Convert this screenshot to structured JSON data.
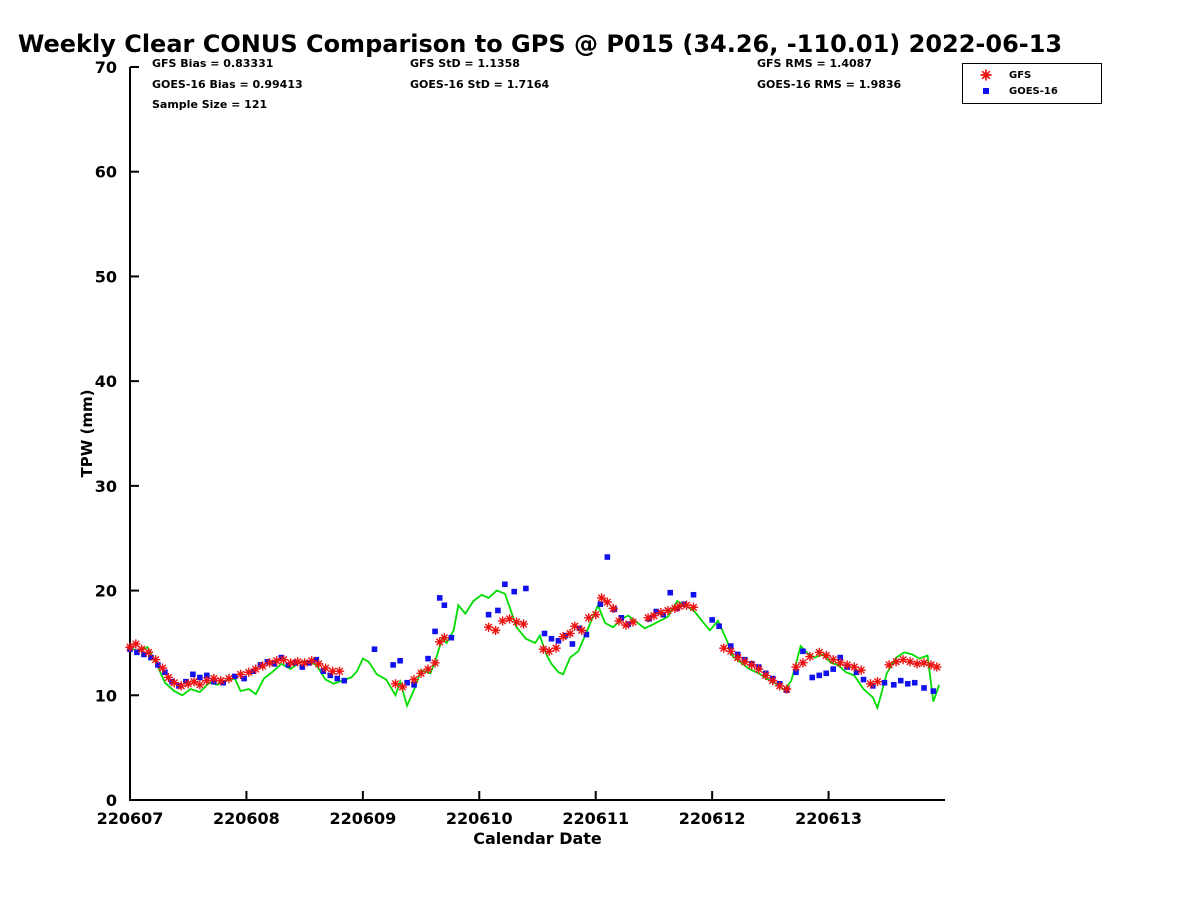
{
  "stats": {
    "gfs_bias": "GFS Bias = 0.83331",
    "goes_bias": "GOES-16 Bias = 0.99413",
    "sample_size": "Sample Size = 121",
    "gfs_std": "GFS StD = 1.1358",
    "goes_std": "GOES-16 StD = 1.7164",
    "gfs_rms": "GFS RMS = 1.4087",
    "goes_rms": "GOES-16 RMS = 1.9836"
  },
  "chart_data": {
    "type": "line",
    "title": "Weekly Clear CONUS Comparison to GPS @ P015 (34.26, -110.01) 2022-06-13",
    "xlabel": "Calendar Date",
    "ylabel": "TPW (mm)",
    "ylim": [
      0,
      70
    ],
    "yticks": [
      0,
      10,
      20,
      30,
      40,
      50,
      60,
      70
    ],
    "xtick_labels": [
      "220607",
      "220608",
      "220609",
      "220610",
      "220611",
      "220612",
      "220613"
    ],
    "xtick_positions_days": [
      0,
      1,
      2,
      3,
      4,
      5,
      6
    ],
    "xlim_days": [
      0,
      7
    ],
    "grid": false,
    "legend_position": "top-right-outside",
    "series": [
      {
        "name": "GPS",
        "marker": "line",
        "color": "#00dd00",
        "points": [
          [
            0.0,
            14.5
          ],
          [
            0.08,
            14.2
          ],
          [
            0.15,
            14.6
          ],
          [
            0.22,
            13.2
          ],
          [
            0.3,
            11.2
          ],
          [
            0.38,
            10.4
          ],
          [
            0.45,
            10.0
          ],
          [
            0.52,
            10.6
          ],
          [
            0.6,
            10.3
          ],
          [
            0.68,
            11.2
          ],
          [
            0.75,
            11.0
          ],
          [
            0.82,
            11.4
          ],
          [
            0.9,
            11.6
          ],
          [
            0.95,
            10.4
          ],
          [
            1.02,
            10.6
          ],
          [
            1.08,
            10.1
          ],
          [
            1.15,
            11.6
          ],
          [
            1.22,
            12.2
          ],
          [
            1.3,
            13.0
          ],
          [
            1.38,
            12.5
          ],
          [
            1.45,
            13.1
          ],
          [
            1.52,
            13.3
          ],
          [
            1.6,
            12.9
          ],
          [
            1.68,
            11.5
          ],
          [
            1.75,
            11.1
          ],
          [
            1.82,
            11.4
          ],
          [
            1.9,
            11.7
          ],
          [
            1.95,
            12.3
          ],
          [
            2.0,
            13.5
          ],
          [
            2.05,
            13.2
          ],
          [
            2.12,
            12.0
          ],
          [
            2.2,
            11.5
          ],
          [
            2.28,
            10.0
          ],
          [
            2.32,
            11.3
          ],
          [
            2.38,
            9.0
          ],
          [
            2.45,
            10.8
          ],
          [
            2.5,
            12.4
          ],
          [
            2.58,
            12.1
          ],
          [
            2.62,
            13.2
          ],
          [
            2.68,
            15.4
          ],
          [
            2.72,
            15.0
          ],
          [
            2.78,
            16.2
          ],
          [
            2.82,
            18.6
          ],
          [
            2.88,
            17.8
          ],
          [
            2.95,
            19.0
          ],
          [
            3.02,
            19.6
          ],
          [
            3.08,
            19.3
          ],
          [
            3.15,
            20.0
          ],
          [
            3.22,
            19.7
          ],
          [
            3.28,
            17.8
          ],
          [
            3.32,
            16.5
          ],
          [
            3.4,
            15.4
          ],
          [
            3.48,
            15.0
          ],
          [
            3.52,
            15.7
          ],
          [
            3.58,
            13.8
          ],
          [
            3.62,
            13.0
          ],
          [
            3.68,
            12.2
          ],
          [
            3.72,
            12.0
          ],
          [
            3.78,
            13.6
          ],
          [
            3.85,
            14.2
          ],
          [
            3.92,
            16.0
          ],
          [
            3.98,
            17.6
          ],
          [
            4.02,
            18.6
          ],
          [
            4.08,
            16.9
          ],
          [
            4.15,
            16.5
          ],
          [
            4.22,
            17.3
          ],
          [
            4.28,
            17.6
          ],
          [
            4.35,
            17.0
          ],
          [
            4.42,
            16.4
          ],
          [
            4.48,
            16.7
          ],
          [
            4.55,
            17.1
          ],
          [
            4.62,
            17.5
          ],
          [
            4.7,
            19.0
          ],
          [
            4.78,
            18.5
          ],
          [
            4.85,
            18.0
          ],
          [
            4.92,
            17.0
          ],
          [
            4.98,
            16.2
          ],
          [
            5.05,
            17.1
          ],
          [
            5.12,
            15.4
          ],
          [
            5.18,
            13.7
          ],
          [
            5.25,
            13.1
          ],
          [
            5.32,
            12.5
          ],
          [
            5.4,
            12.1
          ],
          [
            5.48,
            11.5
          ],
          [
            5.55,
            11.1
          ],
          [
            5.62,
            10.5
          ],
          [
            5.68,
            11.4
          ],
          [
            5.72,
            13.0
          ],
          [
            5.76,
            14.7
          ],
          [
            5.82,
            14.0
          ],
          [
            5.88,
            13.6
          ],
          [
            5.95,
            13.9
          ],
          [
            6.02,
            13.1
          ],
          [
            6.08,
            12.9
          ],
          [
            6.15,
            12.2
          ],
          [
            6.22,
            11.9
          ],
          [
            6.3,
            10.6
          ],
          [
            6.38,
            9.8
          ],
          [
            6.42,
            8.8
          ],
          [
            6.5,
            12.1
          ],
          [
            6.58,
            13.6
          ],
          [
            6.65,
            14.1
          ],
          [
            6.72,
            13.9
          ],
          [
            6.78,
            13.5
          ],
          [
            6.85,
            13.8
          ],
          [
            6.9,
            9.4
          ],
          [
            6.95,
            11.0
          ]
        ]
      },
      {
        "name": "GFS",
        "marker": "asterisk",
        "color": "#ee1111",
        "points": [
          [
            0.0,
            14.6
          ],
          [
            0.05,
            14.9
          ],
          [
            0.1,
            14.4
          ],
          [
            0.16,
            14.1
          ],
          [
            0.22,
            13.4
          ],
          [
            0.28,
            12.6
          ],
          [
            0.33,
            11.7
          ],
          [
            0.38,
            11.2
          ],
          [
            0.44,
            10.9
          ],
          [
            0.5,
            11.1
          ],
          [
            0.55,
            11.3
          ],
          [
            0.6,
            11.0
          ],
          [
            0.66,
            11.4
          ],
          [
            0.72,
            11.6
          ],
          [
            0.78,
            11.4
          ],
          [
            0.85,
            11.6
          ],
          [
            0.95,
            12.0
          ],
          [
            1.02,
            12.2
          ],
          [
            1.08,
            12.5
          ],
          [
            1.14,
            12.8
          ],
          [
            1.2,
            13.1
          ],
          [
            1.26,
            13.3
          ],
          [
            1.32,
            13.4
          ],
          [
            1.38,
            13.1
          ],
          [
            1.44,
            13.2
          ],
          [
            1.5,
            13.1
          ],
          [
            1.56,
            13.3
          ],
          [
            1.62,
            13.0
          ],
          [
            1.68,
            12.6
          ],
          [
            1.74,
            12.3
          ],
          [
            1.8,
            12.3
          ],
          [
            2.28,
            11.1
          ],
          [
            2.34,
            10.8
          ],
          [
            2.44,
            11.5
          ],
          [
            2.5,
            12.1
          ],
          [
            2.56,
            12.5
          ],
          [
            2.62,
            13.1
          ],
          [
            2.66,
            15.1
          ],
          [
            2.7,
            15.5
          ],
          [
            3.08,
            16.5
          ],
          [
            3.14,
            16.2
          ],
          [
            3.2,
            17.1
          ],
          [
            3.26,
            17.3
          ],
          [
            3.32,
            17.0
          ],
          [
            3.38,
            16.8
          ],
          [
            3.55,
            14.4
          ],
          [
            3.6,
            14.2
          ],
          [
            3.66,
            14.5
          ],
          [
            3.72,
            15.6
          ],
          [
            3.78,
            15.9
          ],
          [
            3.82,
            16.6
          ],
          [
            3.88,
            16.2
          ],
          [
            3.94,
            17.4
          ],
          [
            4.0,
            17.7
          ],
          [
            4.05,
            19.3
          ],
          [
            4.1,
            18.9
          ],
          [
            4.15,
            18.3
          ],
          [
            4.2,
            17.1
          ],
          [
            4.26,
            16.7
          ],
          [
            4.32,
            17.0
          ],
          [
            4.45,
            17.4
          ],
          [
            4.5,
            17.6
          ],
          [
            4.56,
            17.9
          ],
          [
            4.62,
            18.1
          ],
          [
            4.68,
            18.3
          ],
          [
            4.72,
            18.5
          ],
          [
            4.78,
            18.6
          ],
          [
            4.84,
            18.4
          ],
          [
            5.1,
            14.5
          ],
          [
            5.16,
            14.2
          ],
          [
            5.22,
            13.6
          ],
          [
            5.28,
            13.2
          ],
          [
            5.34,
            12.9
          ],
          [
            5.4,
            12.5
          ],
          [
            5.46,
            11.9
          ],
          [
            5.52,
            11.4
          ],
          [
            5.58,
            10.9
          ],
          [
            5.64,
            10.6
          ],
          [
            5.72,
            12.7
          ],
          [
            5.78,
            13.1
          ],
          [
            5.84,
            13.7
          ],
          [
            5.92,
            14.1
          ],
          [
            5.98,
            13.8
          ],
          [
            6.04,
            13.4
          ],
          [
            6.1,
            13.1
          ],
          [
            6.16,
            12.9
          ],
          [
            6.22,
            12.7
          ],
          [
            6.28,
            12.4
          ],
          [
            6.36,
            11.1
          ],
          [
            6.42,
            11.3
          ],
          [
            6.52,
            12.9
          ],
          [
            6.58,
            13.2
          ],
          [
            6.64,
            13.4
          ],
          [
            6.7,
            13.2
          ],
          [
            6.76,
            13.0
          ],
          [
            6.82,
            13.1
          ],
          [
            6.88,
            12.9
          ],
          [
            6.93,
            12.7
          ]
        ]
      },
      {
        "name": "GOES-16",
        "marker": "square",
        "color": "#1111ee",
        "points": [
          [
            0.0,
            14.4
          ],
          [
            0.06,
            14.1
          ],
          [
            0.12,
            13.9
          ],
          [
            0.18,
            13.6
          ],
          [
            0.24,
            12.9
          ],
          [
            0.3,
            12.2
          ],
          [
            0.36,
            11.3
          ],
          [
            0.42,
            10.9
          ],
          [
            0.48,
            11.3
          ],
          [
            0.54,
            12.0
          ],
          [
            0.6,
            11.7
          ],
          [
            0.66,
            11.9
          ],
          [
            0.72,
            11.3
          ],
          [
            0.8,
            11.2
          ],
          [
            0.9,
            11.8
          ],
          [
            0.98,
            11.6
          ],
          [
            1.06,
            12.3
          ],
          [
            1.12,
            12.9
          ],
          [
            1.18,
            13.2
          ],
          [
            1.24,
            13.0
          ],
          [
            1.3,
            13.6
          ],
          [
            1.36,
            12.9
          ],
          [
            1.42,
            13.1
          ],
          [
            1.48,
            12.7
          ],
          [
            1.54,
            13.1
          ],
          [
            1.6,
            13.4
          ],
          [
            1.66,
            12.3
          ],
          [
            1.72,
            11.9
          ],
          [
            1.78,
            11.6
          ],
          [
            1.84,
            11.4
          ],
          [
            2.1,
            14.4
          ],
          [
            2.26,
            12.9
          ],
          [
            2.32,
            13.3
          ],
          [
            2.38,
            11.2
          ],
          [
            2.44,
            11.0
          ],
          [
            2.56,
            13.5
          ],
          [
            2.62,
            16.1
          ],
          [
            2.66,
            19.3
          ],
          [
            2.7,
            18.6
          ],
          [
            2.76,
            15.5
          ],
          [
            3.08,
            17.7
          ],
          [
            3.16,
            18.1
          ],
          [
            3.22,
            20.6
          ],
          [
            3.3,
            19.9
          ],
          [
            3.4,
            20.2
          ],
          [
            3.56,
            15.9
          ],
          [
            3.62,
            15.4
          ],
          [
            3.68,
            15.2
          ],
          [
            3.74,
            15.7
          ],
          [
            3.8,
            14.9
          ],
          [
            3.86,
            16.4
          ],
          [
            3.92,
            15.8
          ],
          [
            4.04,
            18.7
          ],
          [
            4.1,
            23.2
          ],
          [
            4.16,
            18.2
          ],
          [
            4.22,
            17.4
          ],
          [
            4.28,
            16.8
          ],
          [
            4.46,
            17.3
          ],
          [
            4.52,
            18.0
          ],
          [
            4.58,
            17.7
          ],
          [
            4.64,
            19.8
          ],
          [
            4.7,
            18.3
          ],
          [
            4.76,
            18.7
          ],
          [
            4.84,
            19.6
          ],
          [
            5.0,
            17.2
          ],
          [
            5.06,
            16.6
          ],
          [
            5.16,
            14.7
          ],
          [
            5.22,
            13.9
          ],
          [
            5.28,
            13.4
          ],
          [
            5.34,
            13.0
          ],
          [
            5.4,
            12.7
          ],
          [
            5.46,
            12.1
          ],
          [
            5.52,
            11.6
          ],
          [
            5.58,
            11.1
          ],
          [
            5.64,
            10.5
          ],
          [
            5.72,
            12.2
          ],
          [
            5.78,
            14.2
          ],
          [
            5.86,
            11.7
          ],
          [
            5.92,
            11.9
          ],
          [
            5.98,
            12.1
          ],
          [
            6.04,
            12.5
          ],
          [
            6.1,
            13.6
          ],
          [
            6.16,
            12.7
          ],
          [
            6.24,
            12.2
          ],
          [
            6.3,
            11.5
          ],
          [
            6.38,
            10.9
          ],
          [
            6.48,
            11.2
          ],
          [
            6.56,
            11.0
          ],
          [
            6.62,
            11.4
          ],
          [
            6.68,
            11.1
          ],
          [
            6.74,
            11.2
          ],
          [
            6.82,
            10.7
          ],
          [
            6.9,
            10.4
          ]
        ]
      }
    ]
  }
}
